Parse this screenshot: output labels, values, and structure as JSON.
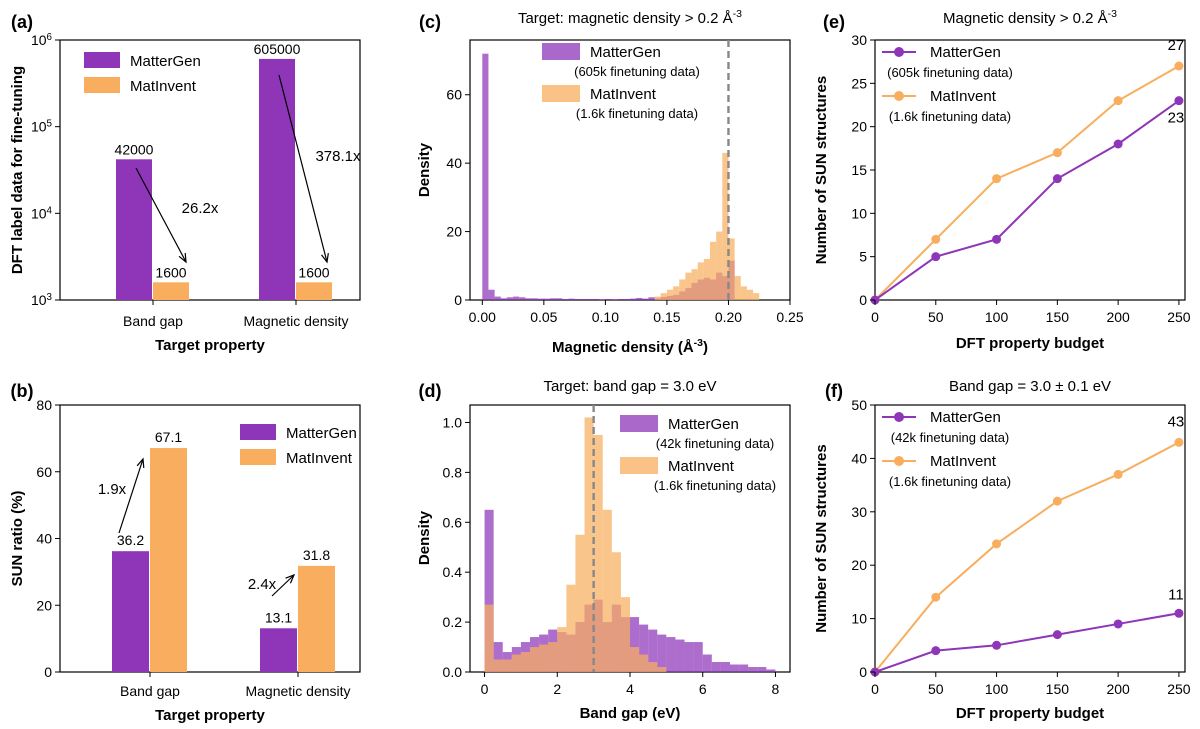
{
  "colors": {
    "mattergen": "#8E35B8",
    "matinvent": "#F8AE5E",
    "overlap": "#D0714E",
    "target_line": "#888888"
  },
  "chart_data": [
    {
      "panel": "a",
      "type": "bar",
      "label": "(a)",
      "categories": [
        "Band gap",
        "Magnetic density"
      ],
      "series": [
        {
          "name": "MatterGen",
          "values": [
            42000,
            605000
          ],
          "value_labels": [
            "42000",
            "605000"
          ]
        },
        {
          "name": "MatInvent",
          "values": [
            1600,
            1600
          ],
          "value_labels": [
            "1600",
            "1600"
          ]
        }
      ],
      "yscale": "log",
      "ylim": [
        1000,
        1000000
      ],
      "yticks": [
        {
          "base": "10",
          "exp": "3"
        },
        {
          "base": "10",
          "exp": "4"
        },
        {
          "base": "10",
          "exp": "5"
        },
        {
          "base": "10",
          "exp": "6"
        }
      ],
      "ylabel": "DFT label data for fine-tuning",
      "xlabel": "Target property",
      "legend": [
        "MatterGen",
        "MatInvent"
      ],
      "annotations": [
        "26.2x",
        "378.1x"
      ]
    },
    {
      "panel": "b",
      "type": "bar",
      "label": "(b)",
      "categories": [
        "Band gap",
        "Magnetic density"
      ],
      "series": [
        {
          "name": "MatterGen",
          "values": [
            36.2,
            13.1
          ],
          "value_labels": [
            "36.2",
            "13.1"
          ]
        },
        {
          "name": "MatInvent",
          "values": [
            67.1,
            31.8
          ],
          "value_labels": [
            "67.1",
            "31.8"
          ]
        }
      ],
      "ylim": [
        0,
        80
      ],
      "yticks": [
        "0",
        "20",
        "40",
        "60",
        "80"
      ],
      "ylabel": "SUN ratio (%)",
      "xlabel": "Target property",
      "legend": [
        "MatterGen",
        "MatInvent"
      ],
      "annotations": [
        "1.9x",
        "2.4x"
      ]
    },
    {
      "panel": "c",
      "type": "histogram",
      "label": "(c)",
      "title": "Target: magnetic density > 0.2 Å",
      "title_sup": "-3",
      "xlabel": "Magnetic density (Å",
      "xlabel_sup": "-3",
      "xlabel_end": ")",
      "ylabel": "Density",
      "xlim": [
        -0.01,
        0.25
      ],
      "ylim": [
        0,
        76
      ],
      "xticks": [
        "0.00",
        "0.05",
        "0.10",
        "0.15",
        "0.20",
        "0.25"
      ],
      "yticks": [
        "0",
        "20",
        "40",
        "60"
      ],
      "bin_width": 0.005,
      "target_line": 0.2,
      "legend": [
        {
          "name": "MatterGen",
          "note": "(605k finetuning data)"
        },
        {
          "name": "MatInvent",
          "note": "(1.6k finetuning data)"
        }
      ],
      "series": [
        {
          "name": "MatterGen",
          "bin_starts": [
            0.0,
            0.005,
            0.01,
            0.015,
            0.02,
            0.025,
            0.03,
            0.035,
            0.04,
            0.045,
            0.05,
            0.055,
            0.06,
            0.065,
            0.07,
            0.075,
            0.08,
            0.085,
            0.09,
            0.095,
            0.1,
            0.105,
            0.11,
            0.115,
            0.12,
            0.125,
            0.13,
            0.135,
            0.14,
            0.145,
            0.15,
            0.155,
            0.16,
            0.165,
            0.17,
            0.175,
            0.18,
            0.185,
            0.19,
            0.195,
            0.2
          ],
          "heights": [
            72,
            3,
            1,
            0.5,
            0.8,
            1,
            0.8,
            0.5,
            0.5,
            0.4,
            0.4,
            0.5,
            0.5,
            0.3,
            0.4,
            0.3,
            0.3,
            0.3,
            0.3,
            0.2,
            0.3,
            0.2,
            0.3,
            0.3,
            0.4,
            0.6,
            0.4,
            0.8,
            0.5,
            0.9,
            1.2,
            1.5,
            2.5,
            3.5,
            5,
            6,
            6.5,
            6,
            8,
            7,
            11.5
          ]
        },
        {
          "name": "MatInvent",
          "bin_starts": [
            0.14,
            0.145,
            0.15,
            0.155,
            0.16,
            0.165,
            0.17,
            0.175,
            0.18,
            0.185,
            0.19,
            0.195,
            0.2,
            0.205,
            0.21,
            0.215,
            0.22
          ],
          "heights": [
            1,
            2,
            3,
            4,
            6,
            8,
            9,
            11,
            12,
            17,
            20,
            43,
            18,
            7,
            4,
            3,
            2
          ]
        }
      ]
    },
    {
      "panel": "d",
      "type": "histogram",
      "label": "(d)",
      "title": "Target: band gap = 3.0 eV",
      "xlabel": "Band gap (eV)",
      "ylabel": "Density",
      "xlim": [
        -0.4,
        8.4
      ],
      "ylim": [
        0,
        1.07
      ],
      "xticks": [
        "0",
        "2",
        "4",
        "6",
        "8"
      ],
      "yticks": [
        "0.0",
        "0.2",
        "0.4",
        "0.6",
        "0.8",
        "1.0"
      ],
      "bin_width": 0.25,
      "target_line": 3.0,
      "legend": [
        {
          "name": "MatterGen",
          "note": "(42k finetuning data)"
        },
        {
          "name": "MatInvent",
          "note": "(1.6k finetuning data)"
        }
      ],
      "series": [
        {
          "name": "MatterGen",
          "bin_starts": [
            0,
            0.25,
            0.5,
            0.75,
            1,
            1.25,
            1.5,
            1.75,
            2,
            2.25,
            2.5,
            2.75,
            3,
            3.25,
            3.5,
            3.75,
            4,
            4.25,
            4.5,
            4.75,
            5,
            5.25,
            5.5,
            5.75,
            6,
            6.25,
            6.5,
            6.75,
            7,
            7.25,
            7.5,
            7.75
          ],
          "heights": [
            0.65,
            0.12,
            0.08,
            0.1,
            0.12,
            0.14,
            0.15,
            0.17,
            0.16,
            0.15,
            0.2,
            0.27,
            0.29,
            0.2,
            0.27,
            0.22,
            0.22,
            0.19,
            0.17,
            0.15,
            0.14,
            0.13,
            0.12,
            0.12,
            0.07,
            0.04,
            0.04,
            0.03,
            0.03,
            0.02,
            0.02,
            0.01
          ]
        },
        {
          "name": "MatInvent",
          "bin_starts": [
            0,
            0.25,
            0.5,
            0.75,
            1,
            1.25,
            1.5,
            1.75,
            2,
            2.25,
            2.5,
            2.75,
            3,
            3.25,
            3.5,
            3.75,
            4,
            4.25,
            4.5,
            4.75
          ],
          "heights": [
            0.27,
            0.05,
            0.05,
            0.07,
            0.08,
            0.1,
            0.11,
            0.12,
            0.18,
            0.35,
            0.55,
            1.02,
            0.95,
            0.65,
            0.48,
            0.3,
            0.1,
            0.07,
            0.04,
            0.02
          ]
        }
      ]
    },
    {
      "panel": "e",
      "type": "line",
      "label": "(e)",
      "title": "Magnetic density > 0.2 Å",
      "title_sup": "-3",
      "xlabel": "DFT property budget",
      "ylabel": "Number of SUN structures",
      "x": [
        0,
        50,
        100,
        150,
        200,
        250
      ],
      "xlim": [
        0,
        255
      ],
      "ylim": [
        0,
        30
      ],
      "xticks": [
        "0",
        "50",
        "100",
        "150",
        "200",
        "250"
      ],
      "yticks": [
        "0",
        "5",
        "10",
        "15",
        "20",
        "25",
        "30"
      ],
      "legend": [
        {
          "name": "MatterGen",
          "note": "(605k finetuning data)"
        },
        {
          "name": "MatInvent",
          "note": "(1.6k finetuning data)"
        }
      ],
      "series": [
        {
          "name": "MatterGen",
          "values": [
            0,
            5,
            7,
            14,
            18,
            23
          ],
          "end_label": "23"
        },
        {
          "name": "MatInvent",
          "values": [
            0,
            7,
            14,
            17,
            23,
            27
          ],
          "end_label": "27"
        }
      ]
    },
    {
      "panel": "f",
      "type": "line",
      "label": "(f)",
      "title": "Band gap = 3.0 ± 0.1 eV",
      "xlabel": "DFT property budget",
      "ylabel": "Number of SUN structures",
      "x": [
        0,
        50,
        100,
        150,
        200,
        250
      ],
      "xlim": [
        0,
        255
      ],
      "ylim": [
        0,
        50
      ],
      "xticks": [
        "0",
        "50",
        "100",
        "150",
        "200",
        "250"
      ],
      "yticks": [
        "0",
        "10",
        "20",
        "30",
        "40",
        "50"
      ],
      "legend": [
        {
          "name": "MatterGen",
          "note": "(42k finetuning data)"
        },
        {
          "name": "MatInvent",
          "note": "(1.6k finetuning data)"
        }
      ],
      "series": [
        {
          "name": "MatterGen",
          "values": [
            0,
            4,
            5,
            7,
            9,
            11
          ],
          "end_label": "11"
        },
        {
          "name": "MatInvent",
          "values": [
            0,
            14,
            24,
            32,
            37,
            43
          ],
          "end_label": "43"
        }
      ]
    }
  ]
}
